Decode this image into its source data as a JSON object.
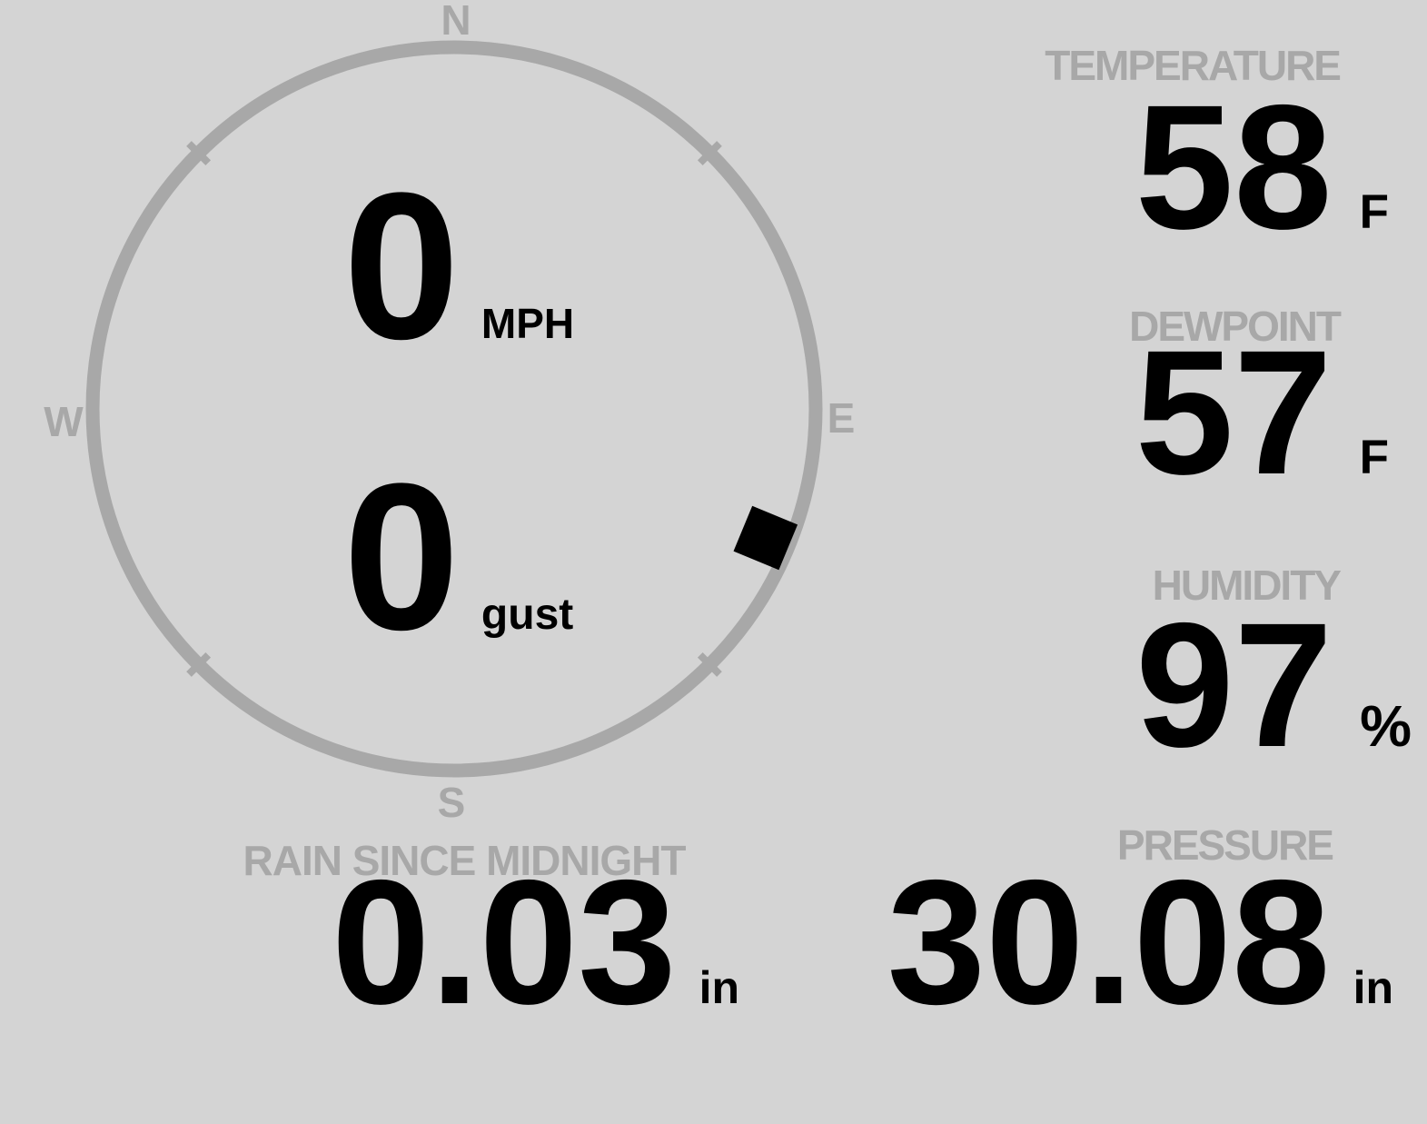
{
  "colors": {
    "background": "#d4d4d4",
    "muted_gray": "#a8a8a8",
    "value_black": "#000000"
  },
  "compass": {
    "cardinal_labels": {
      "north": "N",
      "east": "E",
      "south": "S",
      "west": "W"
    },
    "wind_direction_deg": 112.5
  },
  "wind": {
    "speed_value": "0",
    "speed_unit": "MPH",
    "gust_value": "0",
    "gust_unit": "gust"
  },
  "metrics": {
    "temperature": {
      "label": "TEMPERATURE",
      "value": "58",
      "unit": "F"
    },
    "dewpoint": {
      "label": "DEWPOINT",
      "value": "57",
      "unit": "F"
    },
    "humidity": {
      "label": "HUMIDITY",
      "value": "97",
      "unit": "%"
    },
    "rain": {
      "label": "RAIN SINCE MIDNIGHT",
      "value": "0.03",
      "unit": "in"
    },
    "pressure": {
      "label": "PRESSURE",
      "value": "30.08",
      "unit": "in"
    }
  }
}
